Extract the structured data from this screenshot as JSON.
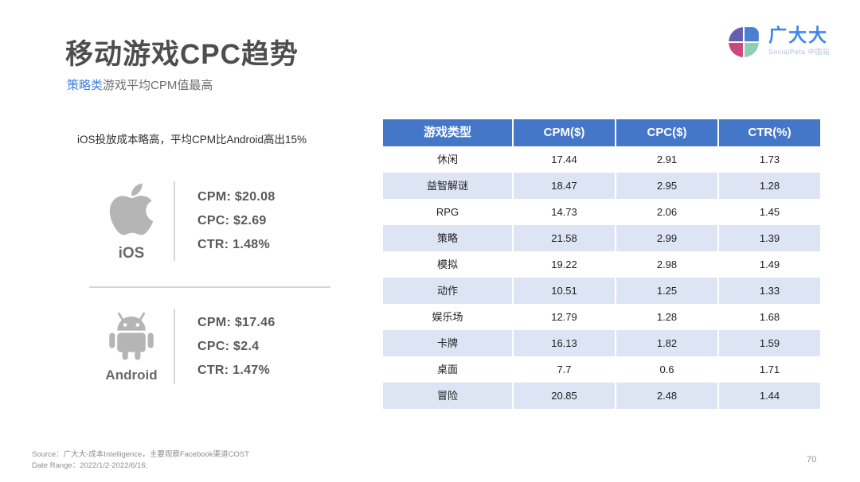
{
  "slide": {
    "title": "移动游戏CPC趋势",
    "subtitle": {
      "highlight": "策略类",
      "rest": "游戏平均CPM值最高"
    },
    "page_number": "70"
  },
  "logo": {
    "brand": "广大大",
    "tagline": "SocialPeta 中国站"
  },
  "insight_note": "iOS投放成本略高，平均CPM比Android高出15%",
  "platforms": [
    {
      "name": "iOS",
      "icon": "apple-icon",
      "stats": [
        "CPM: $20.08",
        "CPC: $2.69",
        "CTR: 1.48%"
      ]
    },
    {
      "name": "Android",
      "icon": "android-icon",
      "stats": [
        "CPM: $17.46",
        "CPC: $2.4",
        "CTR: 1.47%"
      ]
    }
  ],
  "table": {
    "headers": [
      "游戏类型",
      "CPM($)",
      "CPC($)",
      "CTR(%)"
    ],
    "rows": [
      [
        "休闲",
        "17.44",
        "2.91",
        "1.73"
      ],
      [
        "益智解谜",
        "18.47",
        "2.95",
        "1.28"
      ],
      [
        "RPG",
        "14.73",
        "2.06",
        "1.45"
      ],
      [
        "策略",
        "21.58",
        "2.99",
        "1.39"
      ],
      [
        "模拟",
        "19.22",
        "2.98",
        "1.49"
      ],
      [
        "动作",
        "10.51",
        "1.25",
        "1.33"
      ],
      [
        "娱乐场",
        "12.79",
        "1.28",
        "1.68"
      ],
      [
        "卡牌",
        "16.13",
        "1.82",
        "1.59"
      ],
      [
        "桌面",
        "7.7",
        "0.6",
        "1.71"
      ],
      [
        "冒险",
        "20.85",
        "2.48",
        "1.44"
      ]
    ]
  },
  "footer": {
    "source": "Source：广大大-成本Intelligence，主要观察Facebook渠道COST",
    "date_range": "Date Range：2022/1/2-2022/6/16;"
  },
  "colors": {
    "table_header_blue": "#4577c9",
    "table_stripe_blue": "#dde4f4",
    "subtitle_blue": "#3d7ee2",
    "logo_blue": "#3f86ea",
    "platform_icon_gray": "#b5b5b5",
    "logo_quadrants": [
      "#655fb0",
      "#4a7fd1",
      "#c9487e",
      "#8ed0b5"
    ]
  }
}
